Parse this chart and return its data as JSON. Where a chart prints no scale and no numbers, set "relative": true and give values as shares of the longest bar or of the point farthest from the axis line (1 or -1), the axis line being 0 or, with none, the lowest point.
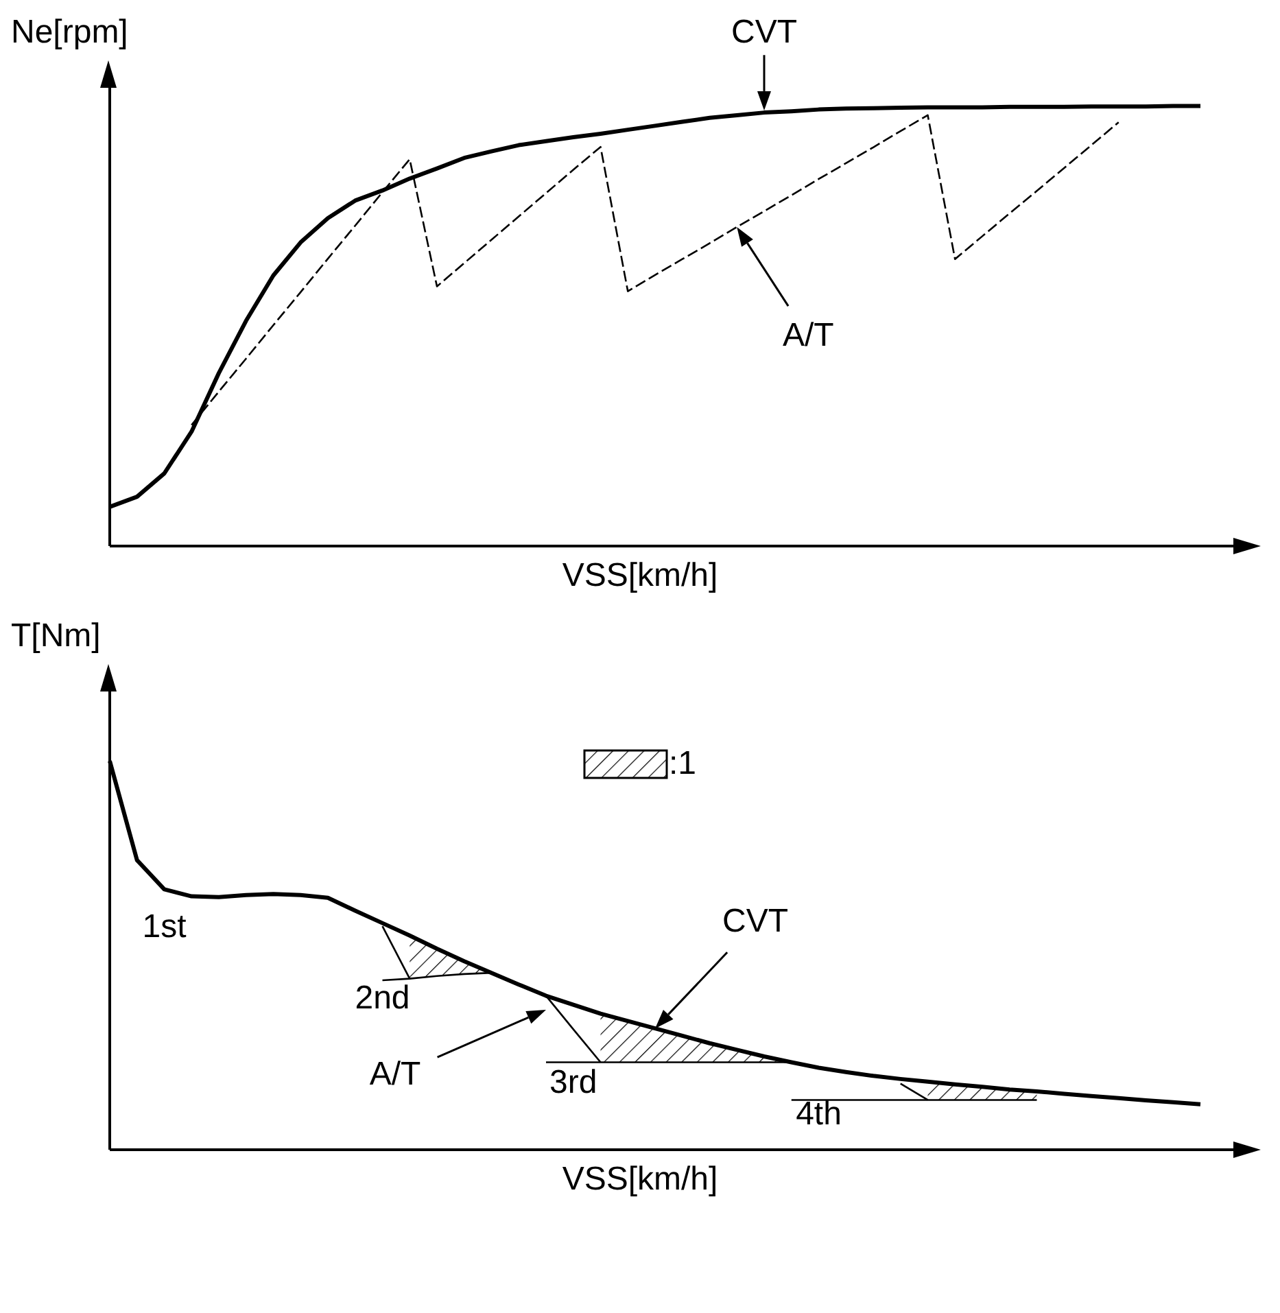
{
  "chart_data": [
    {
      "type": "line",
      "relative": true,
      "ylabel": "Ne[rpm]",
      "xlabel": "VSS[km/h]",
      "tick_labels": false,
      "categories": [
        null,
        null,
        null,
        null,
        null,
        null,
        null,
        null,
        null,
        null,
        null,
        null,
        null,
        null,
        null,
        null,
        null,
        null,
        null,
        null,
        null,
        null,
        null,
        null,
        null,
        null,
        null,
        null,
        null,
        null,
        null,
        null,
        null,
        null,
        null,
        null,
        null,
        null,
        null,
        null,
        null
      ],
      "series": [
        {
          "color": "#000000",
          "line_style": "solid",
          "values": [
            0.089,
            0.112,
            0.165,
            0.26,
            0.393,
            0.512,
            0.615,
            0.69,
            0.745,
            0.785,
            0.808,
            0.835,
            0.858,
            0.882,
            0.897,
            0.911,
            0.92,
            0.929,
            0.937,
            0.946,
            0.955,
            0.964,
            0.973,
            0.979,
            0.985,
            0.988,
            0.992,
            0.994,
            0.995,
            0.996,
            0.997,
            0.997,
            0.997,
            0.998,
            0.998,
            0.998,
            0.999,
            0.999,
            0.999,
            1,
            1
          ]
        },
        {
          "color": "#000000",
          "line_style": "dashed",
          "values": [
            null,
            null,
            null,
            0.275,
            0.351,
            0.426,
            0.502,
            0.577,
            0.653,
            0.728,
            0.804,
            0.879,
            0.59,
            0.643,
            0.696,
            0.749,
            0.802,
            0.855,
            0.907,
            0.579,
            0.616,
            0.652,
            0.688,
            0.725,
            0.761,
            0.797,
            0.834,
            0.87,
            0.906,
            0.943,
            0.979,
            0.652,
            0.704,
            0.756,
            0.807,
            0.859,
            0.911,
            0.963,
            null,
            null,
            null
          ]
        }
      ],
      "annotations": [
        "CVT",
        "A/T"
      ]
    },
    {
      "type": "line",
      "relative": true,
      "ylabel": "T[Nm]",
      "xlabel": "VSS[km/h]",
      "tick_labels": false,
      "legend": "top",
      "categories": [
        null,
        null,
        null,
        null,
        null,
        null,
        null,
        null,
        null,
        null,
        null,
        null,
        null,
        null,
        null,
        null,
        null,
        null,
        null,
        null,
        null,
        null,
        null,
        null,
        null,
        null,
        null,
        null,
        null,
        null,
        null,
        null,
        null,
        null,
        null,
        null,
        null,
        null,
        null,
        null,
        null
      ],
      "series": [
        {
          "color": "#000000",
          "line_style": "solid",
          "values": [
            1,
            0.745,
            0.67,
            0.652,
            0.65,
            0.655,
            0.658,
            0.655,
            0.648,
            0.615,
            0.583,
            0.551,
            0.517,
            0.485,
            0.455,
            0.425,
            0.396,
            0.373,
            0.35,
            0.331,
            0.312,
            0.293,
            0.274,
            0.257,
            0.24,
            0.225,
            0.211,
            0.2,
            0.19,
            0.182,
            0.175,
            0.168,
            0.162,
            0.155,
            0.15,
            0.144,
            0.138,
            0.133,
            0.127,
            0.122,
            0.117
          ]
        },
        {
          "color": "#000000",
          "line_style": "solid",
          "values": [
            null,
            null,
            null,
            null,
            null,
            null,
            null,
            null,
            null,
            null,
            0.436,
            0.44,
            0.447,
            0.452,
            0.455,
            null,
            null,
            null,
            null,
            null,
            null,
            null,
            null,
            null,
            null,
            null,
            null,
            null,
            null,
            null,
            null,
            null,
            null,
            null,
            null,
            null,
            null,
            null,
            null,
            null,
            null
          ]
        },
        {
          "color": "#000000",
          "line_style": "solid",
          "values": [
            null,
            null,
            null,
            null,
            null,
            null,
            null,
            null,
            null,
            null,
            0.575,
            0.44,
            null,
            null,
            null,
            null,
            null,
            null,
            null,
            null,
            null,
            null,
            null,
            null,
            null,
            null,
            null,
            null,
            null,
            null,
            null,
            null,
            null,
            null,
            null,
            null,
            null,
            null,
            null,
            null,
            null
          ]
        },
        {
          "color": "#000000",
          "line_style": "solid",
          "values": [
            null,
            null,
            null,
            null,
            null,
            null,
            null,
            null,
            null,
            null,
            null,
            null,
            null,
            null,
            null,
            null,
            0.225,
            0.225,
            0.225,
            0.225,
            0.225,
            0.225,
            0.225,
            0.225,
            0.225,
            0.225,
            null,
            null,
            null,
            null,
            null,
            null,
            null,
            null,
            null,
            null,
            null,
            null,
            null,
            null,
            null
          ]
        },
        {
          "color": "#000000",
          "line_style": "solid",
          "values": [
            null,
            null,
            null,
            null,
            null,
            null,
            null,
            null,
            null,
            null,
            null,
            null,
            null,
            null,
            null,
            null,
            0.396,
            0.31,
            0.225,
            null,
            null,
            null,
            null,
            null,
            null,
            null,
            null,
            null,
            null,
            null,
            null,
            null,
            null,
            null,
            null,
            null,
            null,
            null,
            null,
            null,
            null
          ]
        },
        {
          "color": "#000000",
          "line_style": "solid",
          "values": [
            null,
            null,
            null,
            null,
            null,
            null,
            null,
            null,
            null,
            null,
            null,
            null,
            null,
            null,
            null,
            null,
            null,
            null,
            null,
            null,
            null,
            null,
            null,
            null,
            null,
            0.128,
            0.128,
            0.128,
            0.128,
            0.128,
            0.128,
            0.128,
            0.128,
            0.128,
            0.128,
            null,
            null,
            null,
            null,
            null,
            null
          ]
        },
        {
          "color": "#000000",
          "line_style": "solid",
          "values": [
            null,
            null,
            null,
            null,
            null,
            null,
            null,
            null,
            null,
            null,
            null,
            null,
            null,
            null,
            null,
            null,
            null,
            null,
            null,
            null,
            null,
            null,
            null,
            null,
            null,
            null,
            null,
            null,
            null,
            0.17,
            0.128,
            null,
            null,
            null,
            null,
            null,
            null,
            null,
            null,
            null,
            null
          ]
        },
        {
          "type": "area",
          "name": ":1",
          "color": "#000000",
          "values": [
            null,
            null,
            null,
            null,
            null,
            null,
            null,
            null,
            null,
            null,
            null,
            0.551,
            0.517,
            0.485,
            0.455,
            null,
            null,
            null,
            null,
            null,
            null,
            null,
            null,
            null,
            null,
            null,
            null,
            null,
            null,
            null,
            null,
            null,
            null,
            null,
            null,
            null,
            null,
            null,
            null,
            null,
            null
          ]
        },
        {
          "type": "area",
          "color": "#000000",
          "values": [
            null,
            null,
            null,
            null,
            null,
            null,
            null,
            null,
            null,
            null,
            null,
            null,
            null,
            null,
            null,
            null,
            null,
            null,
            0.35,
            0.331,
            0.312,
            0.293,
            0.274,
            0.257,
            0.24,
            0.225,
            null,
            null,
            null,
            null,
            null,
            null,
            null,
            null,
            null,
            null,
            null,
            null,
            null,
            null,
            null
          ]
        },
        {
          "type": "area",
          "color": "#000000",
          "values": [
            null,
            null,
            null,
            null,
            null,
            null,
            null,
            null,
            null,
            null,
            null,
            null,
            null,
            null,
            null,
            null,
            null,
            null,
            null,
            null,
            null,
            null,
            null,
            null,
            null,
            null,
            null,
            null,
            null,
            null,
            0.175,
            0.168,
            0.162,
            0.155,
            0.15,
            null,
            null,
            null,
            null,
            null,
            null
          ]
        }
      ],
      "annotations": [
        "1st",
        "2nd",
        "3rd",
        "4th",
        "CVT",
        "A/T"
      ]
    }
  ]
}
